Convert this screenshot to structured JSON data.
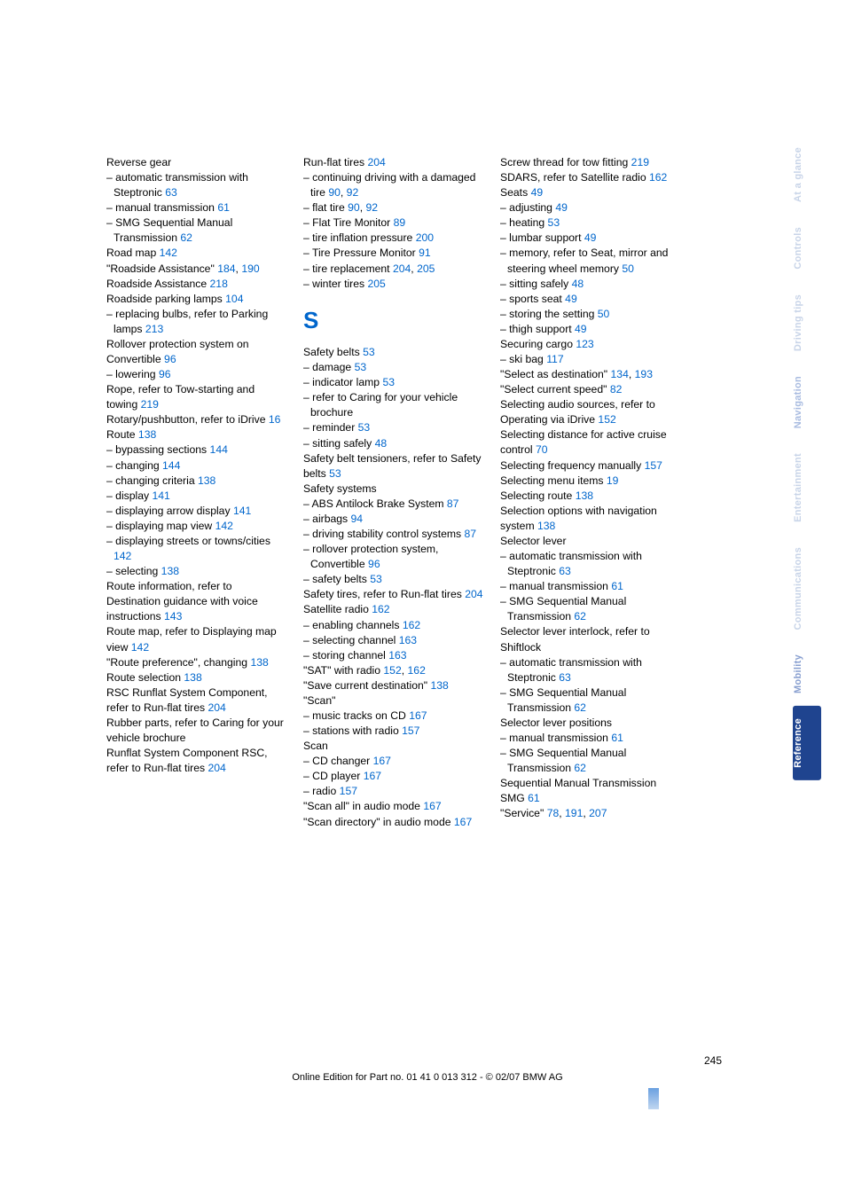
{
  "tabs": {
    "glance": "At a glance",
    "controls": "Controls",
    "driving": "Driving tips",
    "navigation": "Navigation",
    "entertainment": "Entertainment",
    "communications": "Communications",
    "mobility": "Mobility",
    "reference": "Reference"
  },
  "footer": {
    "page": "245",
    "line": "Online Edition for Part no. 01 41 0 013 312 - © 02/07 BMW AG"
  },
  "col1": [
    {
      "t": "Reverse gear"
    },
    {
      "t": "automatic transmission with Steptronic ",
      "l": "63",
      "sub": true
    },
    {
      "t": "manual transmission ",
      "l": "61",
      "sub": true
    },
    {
      "t": "SMG Sequential Manual Transmission ",
      "l": "62",
      "sub": true
    },
    {
      "t": "Road map ",
      "l": "142"
    },
    {
      "t": "\"Roadside Assistance\" ",
      "l": "184",
      "l2": "190"
    },
    {
      "t": "Roadside Assistance ",
      "l": "218"
    },
    {
      "t": "Roadside parking lamps ",
      "l": "104"
    },
    {
      "t": "replacing bulbs, refer to Parking lamps ",
      "l": "213",
      "sub": true
    },
    {
      "t": "Rollover protection system on Convertible ",
      "l": "96"
    },
    {
      "t": "lowering ",
      "l": "96",
      "sub": true
    },
    {
      "t": "Rope, refer to Tow-starting and towing ",
      "l": "219"
    },
    {
      "t": "Rotary/pushbutton, refer to iDrive ",
      "l": "16"
    },
    {
      "t": "Route ",
      "l": "138"
    },
    {
      "t": "bypassing sections ",
      "l": "144",
      "sub": true
    },
    {
      "t": "changing ",
      "l": "144",
      "sub": true
    },
    {
      "t": "changing criteria ",
      "l": "138",
      "sub": true
    },
    {
      "t": "display ",
      "l": "141",
      "sub": true
    },
    {
      "t": "displaying arrow display ",
      "l": "141",
      "sub": true
    },
    {
      "t": "displaying map view ",
      "l": "142",
      "sub": true
    },
    {
      "t": "displaying streets or towns/cities ",
      "l": "142",
      "sub": true
    },
    {
      "t": "selecting ",
      "l": "138",
      "sub": true
    },
    {
      "t": "Route information, refer to Destination guidance with voice instructions ",
      "l": "143"
    },
    {
      "t": "Route map, refer to Displaying map view ",
      "l": "142"
    },
    {
      "t": "\"Route preference\", changing ",
      "l": "138"
    },
    {
      "t": "Route selection ",
      "l": "138"
    },
    {
      "t": "RSC Runflat System Component, refer to Run-flat tires ",
      "l": "204"
    },
    {
      "t": "Rubber parts, refer to Caring for your vehicle brochure"
    },
    {
      "t": "Runflat System Component RSC, refer to Run-flat tires ",
      "l": "204"
    }
  ],
  "col2a": [
    {
      "t": "Run-flat tires ",
      "l": "204"
    },
    {
      "t": "continuing driving with a damaged tire ",
      "l": "90",
      "l2": "92",
      "sub": true
    },
    {
      "t": "flat tire ",
      "l": "90",
      "l2": "92",
      "sub": true
    },
    {
      "t": "Flat Tire Monitor ",
      "l": "89",
      "sub": true
    },
    {
      "t": "tire inflation pressure ",
      "l": "200",
      "sub": true
    },
    {
      "t": "Tire Pressure Monitor ",
      "l": "91",
      "sub": true
    },
    {
      "t": "tire replacement ",
      "l": "204",
      "l2": "205",
      "sub": true
    },
    {
      "t": "winter tires ",
      "l": "205",
      "sub": true
    }
  ],
  "sectionS": "S",
  "col2b": [
    {
      "t": "Safety belts ",
      "l": "53"
    },
    {
      "t": "damage ",
      "l": "53",
      "sub": true
    },
    {
      "t": "indicator lamp ",
      "l": "53",
      "sub": true
    },
    {
      "t": "refer to Caring for your vehicle brochure",
      "sub": true
    },
    {
      "t": "reminder ",
      "l": "53",
      "sub": true
    },
    {
      "t": "sitting safely ",
      "l": "48",
      "sub": true
    },
    {
      "t": "Safety belt tensioners, refer to Safety belts ",
      "l": "53"
    },
    {
      "t": "Safety systems"
    },
    {
      "t": "ABS Antilock Brake System ",
      "l": "87",
      "sub": true
    },
    {
      "t": "airbags ",
      "l": "94",
      "sub": true
    },
    {
      "t": "driving stability control systems ",
      "l": "87",
      "sub": true
    },
    {
      "t": "rollover protection system, Convertible ",
      "l": "96",
      "sub": true
    },
    {
      "t": "safety belts ",
      "l": "53",
      "sub": true
    },
    {
      "t": "Safety tires, refer to Run-flat tires ",
      "l": "204"
    },
    {
      "t": "Satellite radio ",
      "l": "162"
    },
    {
      "t": "enabling channels ",
      "l": "162",
      "sub": true
    },
    {
      "t": "selecting channel ",
      "l": "163",
      "sub": true
    },
    {
      "t": "storing channel ",
      "l": "163",
      "sub": true
    },
    {
      "t": "\"SAT\" with radio ",
      "l": "152",
      "l2": "162"
    },
    {
      "t": "\"Save current destination\" ",
      "l": "138"
    },
    {
      "t": "\"Scan\""
    },
    {
      "t": "music tracks on CD ",
      "l": "167",
      "sub": true
    },
    {
      "t": "stations with radio ",
      "l": "157",
      "sub": true
    },
    {
      "t": "Scan"
    },
    {
      "t": "CD changer ",
      "l": "167",
      "sub": true
    },
    {
      "t": "CD player ",
      "l": "167",
      "sub": true
    },
    {
      "t": "radio ",
      "l": "157",
      "sub": true
    },
    {
      "t": "\"Scan all\" in audio mode ",
      "l": "167"
    },
    {
      "t": "\"Scan directory\" in audio mode ",
      "l": "167"
    }
  ],
  "col3": [
    {
      "t": "Screw thread for tow fitting ",
      "l": "219"
    },
    {
      "t": "SDARS, refer to Satellite radio ",
      "l": "162"
    },
    {
      "t": "Seats ",
      "l": "49"
    },
    {
      "t": "adjusting ",
      "l": "49",
      "sub": true
    },
    {
      "t": "heating ",
      "l": "53",
      "sub": true
    },
    {
      "t": "lumbar support ",
      "l": "49",
      "sub": true
    },
    {
      "t": "memory, refer to Seat, mirror and steering wheel memory ",
      "l": "50",
      "sub": true
    },
    {
      "t": "sitting safely ",
      "l": "48",
      "sub": true
    },
    {
      "t": "sports seat ",
      "l": "49",
      "sub": true
    },
    {
      "t": "storing the setting ",
      "l": "50",
      "sub": true
    },
    {
      "t": "thigh support ",
      "l": "49",
      "sub": true
    },
    {
      "t": "Securing cargo ",
      "l": "123"
    },
    {
      "t": "ski bag ",
      "l": "117",
      "sub": true
    },
    {
      "t": "\"Select as destination\" ",
      "l": "134",
      "l2": "193"
    },
    {
      "t": "\"Select current speed\" ",
      "l": "82"
    },
    {
      "t": "Selecting audio sources, refer to Operating via iDrive ",
      "l": "152"
    },
    {
      "t": "Selecting distance for active cruise control ",
      "l": "70"
    },
    {
      "t": "Selecting frequency manually ",
      "l": "157"
    },
    {
      "t": "Selecting menu items ",
      "l": "19"
    },
    {
      "t": "Selecting route ",
      "l": "138"
    },
    {
      "t": "Selection options with navigation system ",
      "l": "138"
    },
    {
      "t": "Selector lever"
    },
    {
      "t": "automatic transmission with Steptronic ",
      "l": "63",
      "sub": true
    },
    {
      "t": "manual transmission ",
      "l": "61",
      "sub": true
    },
    {
      "t": "SMG Sequential Manual Transmission ",
      "l": "62",
      "sub": true
    },
    {
      "t": "Selector lever interlock, refer to Shiftlock"
    },
    {
      "t": "automatic transmission with Steptronic ",
      "l": "63",
      "sub": true
    },
    {
      "t": "SMG Sequential Manual Transmission ",
      "l": "62",
      "sub": true
    },
    {
      "t": "Selector lever positions"
    },
    {
      "t": "manual transmission ",
      "l": "61",
      "sub": true
    },
    {
      "t": "SMG Sequential Manual Transmission ",
      "l": "62",
      "sub": true
    },
    {
      "t": "Sequential Manual Transmission SMG ",
      "l": "61"
    },
    {
      "t": "\"Service\" ",
      "l": "78",
      "l2": "191",
      "l3": "207"
    }
  ]
}
